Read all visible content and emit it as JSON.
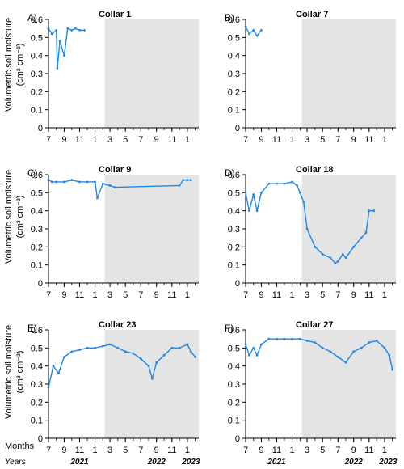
{
  "figure": {
    "months_label": "Months",
    "years_label": "Years",
    "year_labels": [
      {
        "text": "2021",
        "col": 0
      },
      {
        "text": "2021",
        "col": 1
      },
      {
        "text": "2022",
        "col": 0
      },
      {
        "text": "2022",
        "col": 1
      },
      {
        "text": "2023",
        "col": 0
      },
      {
        "text": "2023",
        "col": 1
      }
    ],
    "ylabel_line1": "Volumetric soil moisture",
    "ylabel_line2": "(cm³ cm⁻³)",
    "colors": {
      "series": "#1f87e6",
      "shade": "#e4e4e4"
    }
  },
  "chart_data": [
    {
      "type": "line",
      "panel": "A)",
      "title": "Collar 1",
      "x": [
        "2021-07-01",
        "2021-07-15",
        "2021-08-01",
        "2021-08-05",
        "2021-08-15",
        "2021-09-01",
        "2021-09-15",
        "2021-10-01",
        "2021-10-15",
        "2021-11-01",
        "2021-11-20"
      ],
      "y": [
        0.55,
        0.52,
        0.54,
        0.33,
        0.48,
        0.4,
        0.55,
        0.54,
        0.55,
        0.54,
        0.54
      ],
      "ylim": [
        0,
        0.6
      ],
      "yticks": [
        "0",
        "0.1",
        "0.2",
        "0.3",
        "0.4",
        "0.5",
        "0.6"
      ],
      "xticks": [
        "7",
        "9",
        "11",
        "1",
        "3",
        "5",
        "7",
        "9",
        "11",
        "1"
      ],
      "shaded_from": "2022-02-08"
    },
    {
      "type": "line",
      "panel": "B)",
      "title": "Collar 7",
      "x": [
        "2021-07-01",
        "2021-07-15",
        "2021-08-01",
        "2021-08-15",
        "2021-09-01"
      ],
      "y": [
        0.56,
        0.52,
        0.54,
        0.51,
        0.54
      ],
      "ylim": [
        0,
        0.6
      ],
      "yticks": [
        "0",
        "0.1",
        "0.2",
        "0.3",
        "0.4",
        "0.5",
        "0.6"
      ],
      "xticks": [
        "7",
        "9",
        "11",
        "1",
        "3",
        "5",
        "7",
        "9",
        "11",
        "1"
      ],
      "shaded_from": "2022-02-08"
    },
    {
      "type": "line",
      "panel": "C)",
      "title": "Collar 9",
      "x": [
        "2021-07-01",
        "2021-07-15",
        "2021-08-01",
        "2021-09-01",
        "2021-10-01",
        "2021-11-01",
        "2021-12-01",
        "2022-01-01",
        "2022-01-10",
        "2022-02-01",
        "2022-03-01",
        "2022-03-20",
        "2022-12-01",
        "2022-12-15",
        "2023-01-01",
        "2023-01-15"
      ],
      "y": [
        0.57,
        0.56,
        0.56,
        0.56,
        0.57,
        0.56,
        0.56,
        0.56,
        0.47,
        0.55,
        0.54,
        0.53,
        0.54,
        0.57,
        0.57,
        0.57
      ],
      "ylim": [
        0,
        0.6
      ],
      "yticks": [
        "0",
        "0.1",
        "0.2",
        "0.3",
        "0.4",
        "0.5",
        "0.6"
      ],
      "xticks": [
        "7",
        "9",
        "11",
        "1",
        "3",
        "5",
        "7",
        "9",
        "11",
        "1"
      ],
      "shaded_from": "2022-02-08"
    },
    {
      "type": "line",
      "panel": "D)",
      "title": "Collar 18",
      "x": [
        "2021-07-01",
        "2021-07-15",
        "2021-08-01",
        "2021-08-15",
        "2021-09-01",
        "2021-10-01",
        "2021-11-01",
        "2021-12-01",
        "2022-01-01",
        "2022-01-20",
        "2022-02-01",
        "2022-02-15",
        "2022-03-01",
        "2022-04-01",
        "2022-05-01",
        "2022-06-01",
        "2022-06-20",
        "2022-07-01",
        "2022-07-20",
        "2022-08-01",
        "2022-09-01",
        "2022-10-01",
        "2022-10-20",
        "2022-11-01",
        "2022-11-20"
      ],
      "y": [
        0.5,
        0.4,
        0.49,
        0.4,
        0.5,
        0.55,
        0.55,
        0.55,
        0.56,
        0.54,
        0.5,
        0.45,
        0.3,
        0.2,
        0.16,
        0.14,
        0.11,
        0.12,
        0.16,
        0.14,
        0.2,
        0.25,
        0.28,
        0.4,
        0.4
      ],
      "ylim": [
        0,
        0.6
      ],
      "yticks": [
        "0",
        "0.1",
        "0.2",
        "0.3",
        "0.4",
        "0.5",
        "0.6"
      ],
      "xticks": [
        "7",
        "9",
        "11",
        "1",
        "3",
        "5",
        "7",
        "9",
        "11",
        "1"
      ],
      "shaded_from": "2022-02-08"
    },
    {
      "type": "line",
      "panel": "E)",
      "title": "Collar 23",
      "x": [
        "2021-07-01",
        "2021-07-20",
        "2021-08-10",
        "2021-09-01",
        "2021-10-01",
        "2021-11-01",
        "2021-12-01",
        "2022-01-01",
        "2022-02-01",
        "2022-03-01",
        "2022-04-01",
        "2022-05-01",
        "2022-06-01",
        "2022-07-01",
        "2022-08-01",
        "2022-08-15",
        "2022-09-01",
        "2022-10-01",
        "2022-11-01",
        "2022-12-01",
        "2023-01-01",
        "2023-01-15",
        "2023-02-01"
      ],
      "y": [
        0.28,
        0.4,
        0.36,
        0.45,
        0.48,
        0.49,
        0.5,
        0.5,
        0.51,
        0.52,
        0.5,
        0.48,
        0.47,
        0.44,
        0.4,
        0.33,
        0.42,
        0.46,
        0.5,
        0.5,
        0.52,
        0.48,
        0.45
      ],
      "ylim": [
        0,
        0.6
      ],
      "yticks": [
        "0",
        "0.1",
        "0.2",
        "0.3",
        "0.4",
        "0.5",
        "0.6"
      ],
      "xticks": [
        "7",
        "9",
        "11",
        "1",
        "3",
        "5",
        "7",
        "9",
        "11",
        "1"
      ],
      "shaded_from": "2022-02-08"
    },
    {
      "type": "line",
      "panel": "F)",
      "title": "Collar 27",
      "x": [
        "2021-07-01",
        "2021-07-15",
        "2021-08-01",
        "2021-08-15",
        "2021-09-01",
        "2021-10-01",
        "2021-11-01",
        "2021-12-01",
        "2022-01-01",
        "2022-02-01",
        "2022-03-01",
        "2022-04-01",
        "2022-05-01",
        "2022-06-01",
        "2022-07-01",
        "2022-08-01",
        "2022-09-01",
        "2022-10-01",
        "2022-11-01",
        "2022-12-01",
        "2023-01-01",
        "2023-01-20",
        "2023-02-01"
      ],
      "y": [
        0.52,
        0.46,
        0.5,
        0.46,
        0.52,
        0.55,
        0.55,
        0.55,
        0.55,
        0.55,
        0.54,
        0.53,
        0.5,
        0.48,
        0.45,
        0.42,
        0.48,
        0.5,
        0.53,
        0.54,
        0.5,
        0.46,
        0.38
      ],
      "ylim": [
        0,
        0.6
      ],
      "yticks": [
        "0",
        "0.1",
        "0.2",
        "0.3",
        "0.4",
        "0.5",
        "0.6"
      ],
      "xticks": [
        "7",
        "9",
        "11",
        "1",
        "3",
        "5",
        "7",
        "9",
        "11",
        "1"
      ],
      "shaded_from": "2022-02-08"
    }
  ]
}
